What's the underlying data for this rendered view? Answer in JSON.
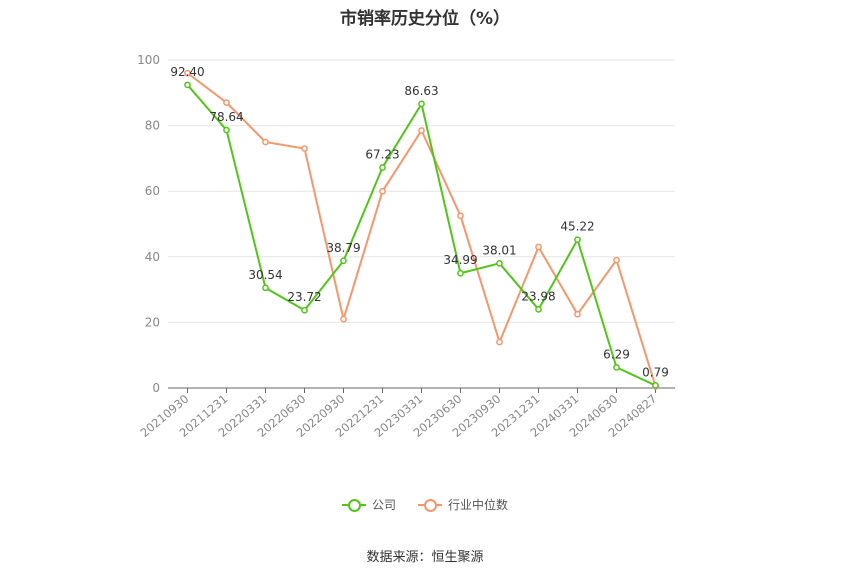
{
  "chart_data": {
    "type": "line",
    "title": "市销率历史分位（%）",
    "categories": [
      "20210930",
      "20211231",
      "20220331",
      "20220630",
      "20220930",
      "20221231",
      "20230331",
      "20230630",
      "20230930",
      "20231231",
      "20240331",
      "20240630",
      "20240827"
    ],
    "series": [
      {
        "name": "公司",
        "color": "#52c41a",
        "values": [
          92.4,
          78.64,
          30.54,
          23.72,
          38.79,
          67.23,
          86.63,
          34.99,
          38.01,
          23.98,
          45.22,
          6.29,
          0.79
        ],
        "labels": [
          "92.40",
          "78.64",
          "30.54",
          "23.72",
          "38.79",
          "67.23",
          "86.63",
          "34.99",
          "38.01",
          "23.98",
          "45.22",
          "6.29",
          "0.79"
        ]
      },
      {
        "name": "行业中位数",
        "color": "#f4976c",
        "values": [
          96,
          87,
          75,
          73,
          21,
          60,
          78.5,
          52.5,
          14,
          43,
          22.5,
          39,
          0.5
        ]
      }
    ],
    "yticks": [
      0,
      20,
      40,
      60,
      80,
      100
    ],
    "ylim": [
      0,
      100
    ],
    "grid": true,
    "legend_position": "bottom"
  },
  "source": "数据来源：恒生聚源"
}
